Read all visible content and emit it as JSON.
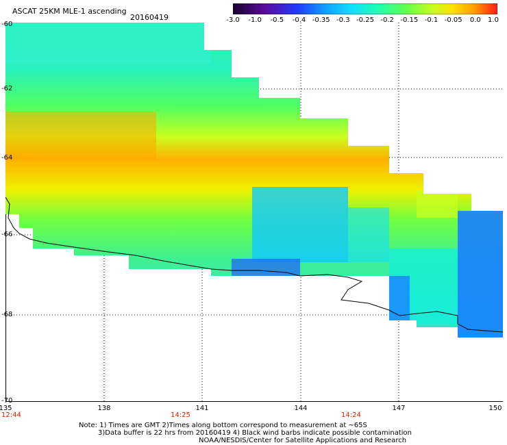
{
  "header": {
    "title": "ASCAT 25KM MLE-1 ascending",
    "date": "20160419"
  },
  "colorbar": {
    "labels": [
      "-3.0",
      "-1.0",
      "-0.5",
      "-0.4",
      "-0.35",
      "-0.3",
      "-0.25",
      "-0.2",
      "-0.15",
      "-0.1",
      "-0.05",
      "0.0",
      "1.0"
    ],
    "colors": [
      "#1a0030",
      "#5a0a9a",
      "#2040ff",
      "#1a90ff",
      "#10d0ff",
      "#20ffd8",
      "#40ff80",
      "#90ff30",
      "#e0ff10",
      "#ffe000",
      "#ffa000",
      "#ff4a00",
      "#ff1a1a"
    ]
  },
  "axes": {
    "y_labels": [
      "-60",
      "-62",
      "-64",
      "-66",
      "-68",
      "-70"
    ],
    "x_labels": [
      "135",
      "138",
      "141",
      "144",
      "147",
      "150"
    ]
  },
  "times": [
    "12:44",
    "14:25",
    "14:24"
  ],
  "notes": {
    "line1": "Note: 1) Times are GMT 2)Times along bottom correspond to measurement at ~65S",
    "line2": "3)Data buffer is 22 hrs from 20160419 4) Black wind barbs indicate possible contamination",
    "line3": "NOAA/NESDIS/Center for Satellite Applications and Research"
  }
}
